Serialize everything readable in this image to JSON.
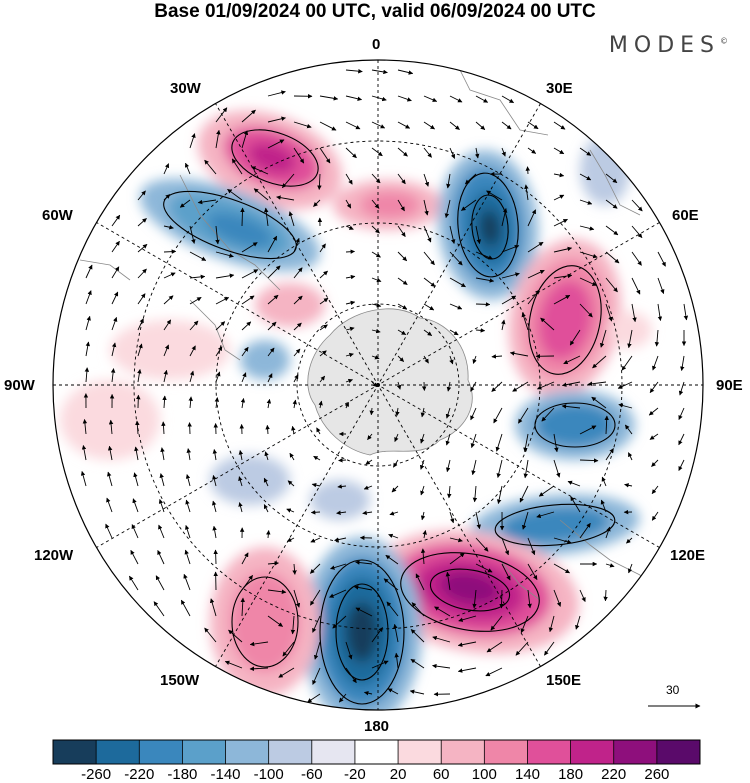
{
  "title": "Base 01/09/2024 00 UTC, valid 06/09/2024 00 UTC",
  "brand": "MODES",
  "brand_mark": "©",
  "longitude_labels": {
    "lon_0": "0",
    "lon_30e": "30E",
    "lon_60e": "60E",
    "lon_90e": "90E",
    "lon_120e": "120E",
    "lon_150e": "150E",
    "lon_180": "180",
    "lon_150w": "150W",
    "lon_120w": "120W",
    "lon_90w": "90W",
    "lon_60w": "60W",
    "lon_30w": "30W"
  },
  "vector_scale": {
    "label": "30"
  },
  "colorbar": {
    "ticks": [
      "-260",
      "-220",
      "-180",
      "-140",
      "-100",
      "-60",
      "-20",
      "20",
      "60",
      "100",
      "140",
      "180",
      "220",
      "260"
    ],
    "colors": [
      "#173d5b",
      "#1d6a9c",
      "#3a87bd",
      "#5ba0ca",
      "#8db7d9",
      "#bccbe3",
      "#e6e6f1",
      "#ffffff",
      "#fbdadf",
      "#f5b4c3",
      "#ef86a8",
      "#e0509a",
      "#c0238a",
      "#8e0f7c",
      "#5a0a6a"
    ]
  },
  "colors": {
    "land": "#e3e3e3",
    "coast": "#8a8a8a",
    "grid": "#000000",
    "arrow": "#000000",
    "contour": "#000000"
  }
}
